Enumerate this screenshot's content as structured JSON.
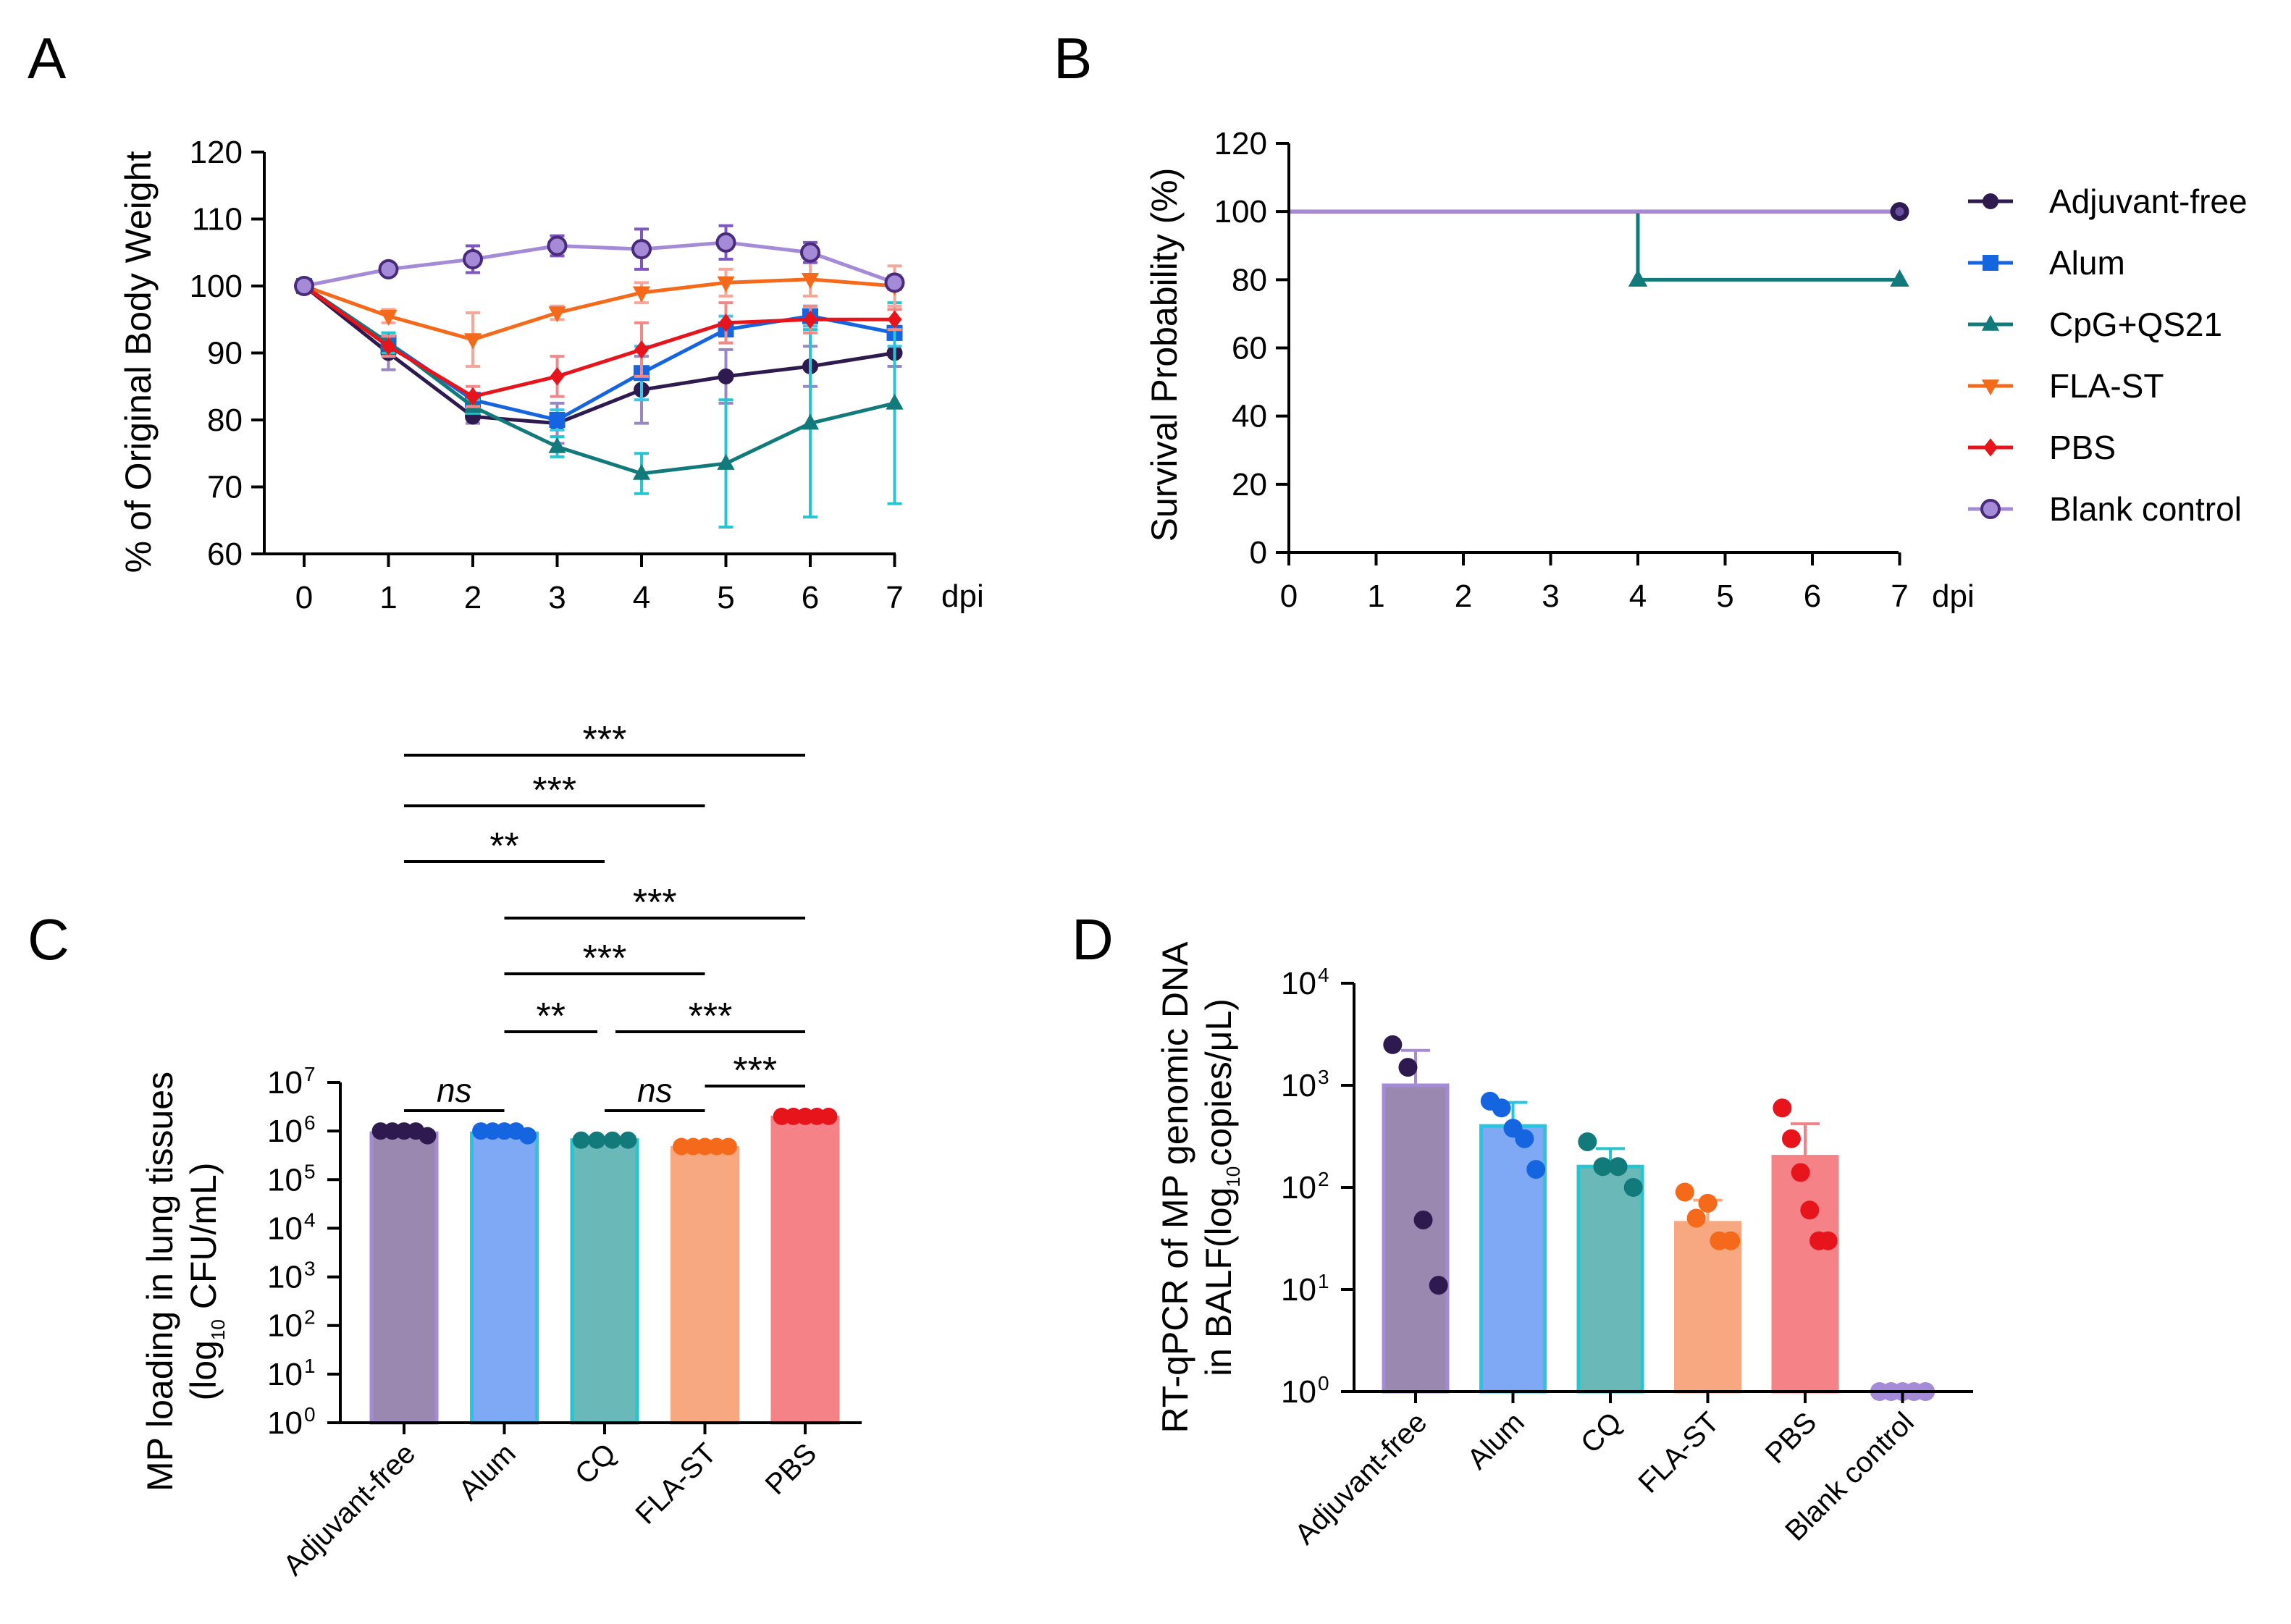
{
  "chart_data": [
    {
      "panel": "A",
      "type": "line",
      "ylabel": "% of Original Body Weight",
      "xlabel_unit": "dpi",
      "ylim": [
        60,
        120
      ],
      "yticks": [
        "60",
        "70",
        "80",
        "90",
        "100",
        "110",
        "120"
      ],
      "xticks": [
        "0",
        "1",
        "2",
        "3",
        "4",
        "5",
        "6",
        "7"
      ],
      "series": [
        {
          "name": "Adjuvant-free",
          "color": "#2e1a4f",
          "err_color": "#9a86c4",
          "marker": "circle",
          "x": [
            0,
            1,
            2,
            3,
            4,
            5,
            6,
            7
          ],
          "values": [
            100,
            90,
            80.5,
            79.5,
            84.5,
            86.5,
            88,
            90
          ],
          "errors": [
            0.5,
            2.5,
            1,
            3,
            5,
            4,
            3,
            2
          ]
        },
        {
          "name": "Alum",
          "color": "#1565e0",
          "err_color": "#3cc6e8",
          "marker": "square",
          "x": [
            0,
            1,
            2,
            3,
            4,
            5,
            6,
            7
          ],
          "values": [
            100,
            91.5,
            83,
            80,
            87,
            93.5,
            95.5,
            93
          ],
          "errors": [
            0.5,
            1.5,
            1,
            1.5,
            4,
            2,
            1.5,
            2
          ]
        },
        {
          "name": "CpG+QS21",
          "color": "#127a7a",
          "err_color": "#26c6d0",
          "marker": "triangle-up",
          "x": [
            0,
            1,
            2,
            3,
            4,
            5,
            6,
            7
          ],
          "values": [
            100,
            91.5,
            82,
            76,
            72,
            73.5,
            79.5,
            82.5
          ],
          "errors": [
            0.5,
            1.5,
            1,
            1.5,
            3,
            9.5,
            14,
            15
          ]
        },
        {
          "name": "FLA-ST",
          "color": "#f56a1a",
          "err_color": "#f5a89a",
          "marker": "triangle-down",
          "x": [
            0,
            1,
            2,
            3,
            4,
            5,
            6,
            7
          ],
          "values": [
            100,
            95.5,
            92,
            96,
            99,
            100.5,
            101,
            100
          ],
          "errors": [
            0.5,
            1,
            4,
            1,
            1.5,
            2,
            2.5,
            3
          ]
        },
        {
          "name": "PBS",
          "color": "#e8141c",
          "err_color": "#f08a8a",
          "marker": "diamond",
          "x": [
            0,
            1,
            2,
            3,
            4,
            5,
            6,
            7
          ],
          "values": [
            100,
            91,
            83.5,
            86.5,
            90.5,
            94.5,
            95,
            95
          ],
          "errors": [
            0.5,
            1.5,
            1.5,
            3,
            4,
            3,
            2,
            1.5
          ]
        },
        {
          "name": "Blank control",
          "color": "#a58ad8",
          "err_color": "#7e57c2",
          "marker": "circle-open",
          "x": [
            0,
            1,
            2,
            3,
            4,
            5,
            6,
            7
          ],
          "values": [
            100,
            102.5,
            104,
            106,
            105.5,
            106.5,
            105,
            100.5
          ],
          "errors": [
            0.5,
            0.8,
            2,
            1.5,
            3,
            2.5,
            1.5,
            1
          ]
        }
      ]
    },
    {
      "panel": "B",
      "type": "line",
      "step": true,
      "ylabel": "Survival Probability (%)",
      "xlabel_unit": "dpi",
      "ylim": [
        0,
        120
      ],
      "yticks": [
        "0",
        "20",
        "40",
        "60",
        "80",
        "100",
        "120"
      ],
      "xticks": [
        "0",
        "1",
        "2",
        "3",
        "4",
        "5",
        "6",
        "7"
      ],
      "series": [
        {
          "name": "Adjuvant-free",
          "color": "#2e1a4f",
          "steps": [
            [
              0,
              100
            ],
            [
              7,
              100
            ]
          ],
          "end_marker": "circle"
        },
        {
          "name": "Alum",
          "color": "#1565e0",
          "steps": [
            [
              0,
              100
            ],
            [
              7,
              100
            ]
          ],
          "end_marker": "square"
        },
        {
          "name": "CpG+QS21",
          "color": "#127a7a",
          "steps": [
            [
              0,
              100
            ],
            [
              4,
              100
            ],
            [
              4,
              80
            ],
            [
              7,
              80
            ]
          ],
          "markers": [
            [
              4,
              80
            ],
            [
              7,
              80
            ]
          ],
          "end_marker": "triangle-up"
        },
        {
          "name": "FLA-ST",
          "color": "#f56a1a",
          "steps": [
            [
              0,
              100
            ],
            [
              7,
              100
            ]
          ],
          "end_marker": "triangle-down"
        },
        {
          "name": "PBS",
          "color": "#e8141c",
          "steps": [
            [
              0,
              100
            ],
            [
              7,
              100
            ]
          ],
          "end_marker": "diamond"
        },
        {
          "name": "Blank control",
          "color": "#a58ad8",
          "steps": [
            [
              0,
              100
            ],
            [
              7,
              100
            ]
          ],
          "end_marker": "circle-open"
        }
      ],
      "legend": [
        "Adjuvant-free",
        "Alum",
        "CpG+QS21",
        "FLA-ST",
        "PBS",
        "Blank control"
      ]
    },
    {
      "panel": "C",
      "type": "bar",
      "yscale": "log",
      "ylabel_line1": "MP loading in lung tissues",
      "ylabel_line2_pre": "(log",
      "ylabel_line2_sub": "10",
      "ylabel_line2_post": " CFU/mL)",
      "ylim_exp": [
        0,
        7
      ],
      "ytick_exponents": [
        "0",
        "1",
        "2",
        "3",
        "4",
        "5",
        "6",
        "7"
      ],
      "categories": [
        "Adjuvant-free",
        "Alum",
        "CQ",
        "FLA-ST",
        "PBS"
      ],
      "values": [
        900000,
        900000,
        650000,
        450000,
        1900000
      ],
      "bar_colors": [
        "#9b88b0",
        "#7fa8f5",
        "#6ab8b8",
        "#f7a880",
        "#f58286"
      ],
      "edge_colors": [
        "#a58ad8",
        "#26c6e0",
        "#26c6d0",
        "#f7a880",
        "#f58286"
      ],
      "dot_colors": [
        "#2e1a4f",
        "#1565e0",
        "#127a7a",
        "#f56a1a",
        "#e8141c"
      ],
      "points": [
        [
          1000000,
          1000000,
          1000000,
          1000000,
          800000
        ],
        [
          1000000,
          1000000,
          1000000,
          1000000,
          800000
        ],
        [
          650000,
          650000,
          650000,
          650000
        ],
        [
          480000,
          480000,
          480000,
          480000,
          480000
        ],
        [
          2000000,
          2000000,
          2000000,
          2000000,
          2000000
        ]
      ],
      "comparisons": [
        {
          "from": 0,
          "to": 4,
          "label": "***"
        },
        {
          "from": 0,
          "to": 3,
          "label": "***"
        },
        {
          "from": 0,
          "to": 2,
          "label": "**"
        },
        {
          "from": 1,
          "to": 4,
          "label": "***"
        },
        {
          "from": 1,
          "to": 3,
          "label": "***"
        },
        {
          "from": 1,
          "to": 2,
          "label": "**"
        },
        {
          "from": 2,
          "to": 4,
          "label": "***"
        },
        {
          "from": 3,
          "to": 4,
          "label": "***"
        },
        {
          "from": 0,
          "to": 1,
          "label": "ns"
        },
        {
          "from": 2,
          "to": 3,
          "label": "ns"
        }
      ]
    },
    {
      "panel": "D",
      "type": "bar",
      "yscale": "log",
      "ylabel_line1": "RT-qPCR of MP genomic DNA",
      "ylabel_line2_pre": "in BALF(log",
      "ylabel_line2_sub": "10",
      "ylabel_line2_post": "copies/μL)",
      "ylim_exp": [
        0,
        4
      ],
      "ytick_exponents": [
        "0",
        "1",
        "2",
        "3",
        "4"
      ],
      "categories": [
        "Adjuvant-free",
        "Alum",
        "CQ",
        "FLA-ST",
        "PBS",
        "Blank control"
      ],
      "values": [
        1000,
        400,
        160,
        45,
        200,
        1
      ],
      "errors_upper": [
        2200,
        680,
        240,
        75,
        420,
        1
      ],
      "bar_colors": [
        "#9b88b0",
        "#7fa8f5",
        "#6ab8b8",
        "#f7a880",
        "#f58286",
        "#a58ad8"
      ],
      "edge_colors": [
        "#a58ad8",
        "#26c6e0",
        "#26c6d0",
        "#f7a880",
        "#f58286",
        "#a58ad8"
      ],
      "dot_colors": [
        "#2e1a4f",
        "#1565e0",
        "#127a7a",
        "#f56a1a",
        "#e8141c",
        "#a58ad8"
      ],
      "points": [
        [
          2500,
          1500,
          48,
          11
        ],
        [
          700,
          600,
          380,
          300,
          150
        ],
        [
          280,
          160,
          160,
          100
        ],
        [
          90,
          50,
          70,
          30,
          30
        ],
        [
          600,
          300,
          140,
          60,
          30,
          30
        ],
        [
          1,
          1,
          1,
          1,
          1
        ]
      ]
    }
  ],
  "panels": {
    "A": "A",
    "B": "B",
    "C": "C",
    "D": "D"
  },
  "axis_base": "10"
}
